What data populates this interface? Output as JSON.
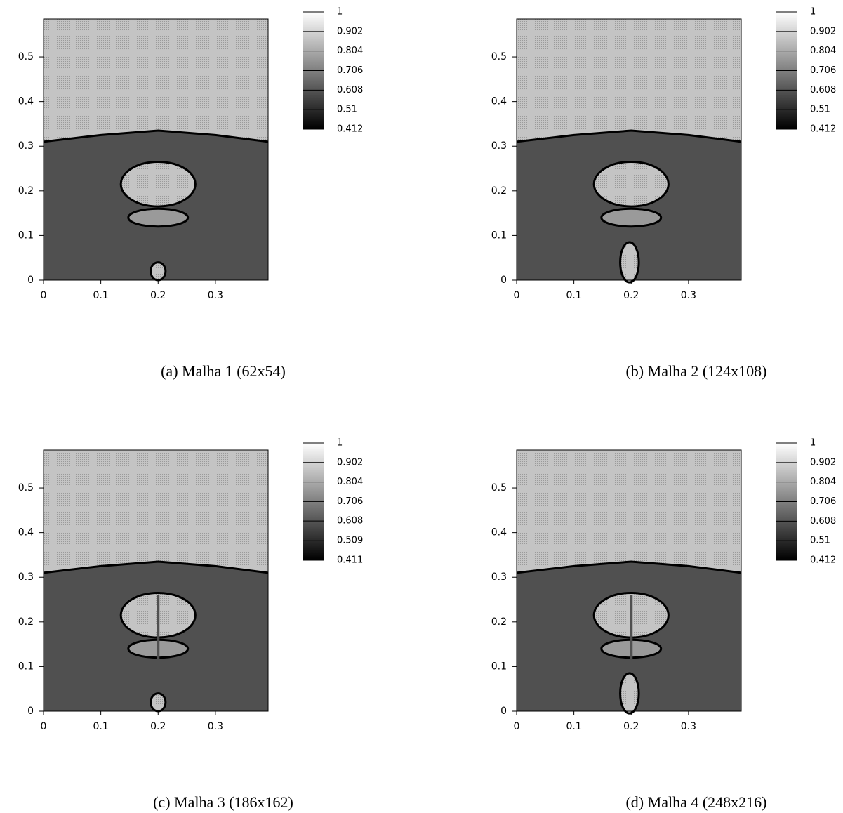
{
  "chart_data": [
    {
      "type": "contour",
      "caption": "(a) Malha 1 (62x54)",
      "xlim": [
        0,
        0.392
      ],
      "ylim": [
        0,
        0.585
      ],
      "xticks": [
        0,
        0.1,
        0.2,
        0.3
      ],
      "yticks": [
        0,
        0.1,
        0.2,
        0.3,
        0.4,
        0.5
      ],
      "clim": [
        0.412,
        1
      ],
      "colorbar_ticks": [
        1,
        0.902,
        0.804,
        0.706,
        0.608,
        0.51,
        0.412
      ]
    },
    {
      "type": "contour",
      "caption": "(b) Malha 2 (124x108)",
      "xlim": [
        0,
        0.392
      ],
      "ylim": [
        0,
        0.585
      ],
      "xticks": [
        0,
        0.1,
        0.2,
        0.3
      ],
      "yticks": [
        0,
        0.1,
        0.2,
        0.3,
        0.4,
        0.5
      ],
      "clim": [
        0.412,
        1
      ],
      "colorbar_ticks": [
        1,
        0.902,
        0.804,
        0.706,
        0.608,
        0.51,
        0.412
      ]
    },
    {
      "type": "contour",
      "caption": "(c) Malha 3 (186x162)",
      "xlim": [
        0,
        0.392
      ],
      "ylim": [
        0,
        0.585
      ],
      "xticks": [
        0,
        0.1,
        0.2,
        0.3
      ],
      "yticks": [
        0,
        0.1,
        0.2,
        0.3,
        0.4,
        0.5
      ],
      "clim": [
        0.411,
        1
      ],
      "colorbar_ticks": [
        1,
        0.902,
        0.804,
        0.706,
        0.608,
        0.509,
        0.411
      ]
    },
    {
      "type": "contour",
      "caption": "(d) Malha 4 (248x216)",
      "xlim": [
        0,
        0.392
      ],
      "ylim": [
        0,
        0.585
      ],
      "xticks": [
        0,
        0.1,
        0.2,
        0.3
      ],
      "yticks": [
        0,
        0.1,
        0.2,
        0.3,
        0.4,
        0.5
      ],
      "clim": [
        0.412,
        1
      ],
      "colorbar_ticks": [
        1,
        0.902,
        0.804,
        0.706,
        0.608,
        0.51,
        0.412
      ]
    }
  ]
}
